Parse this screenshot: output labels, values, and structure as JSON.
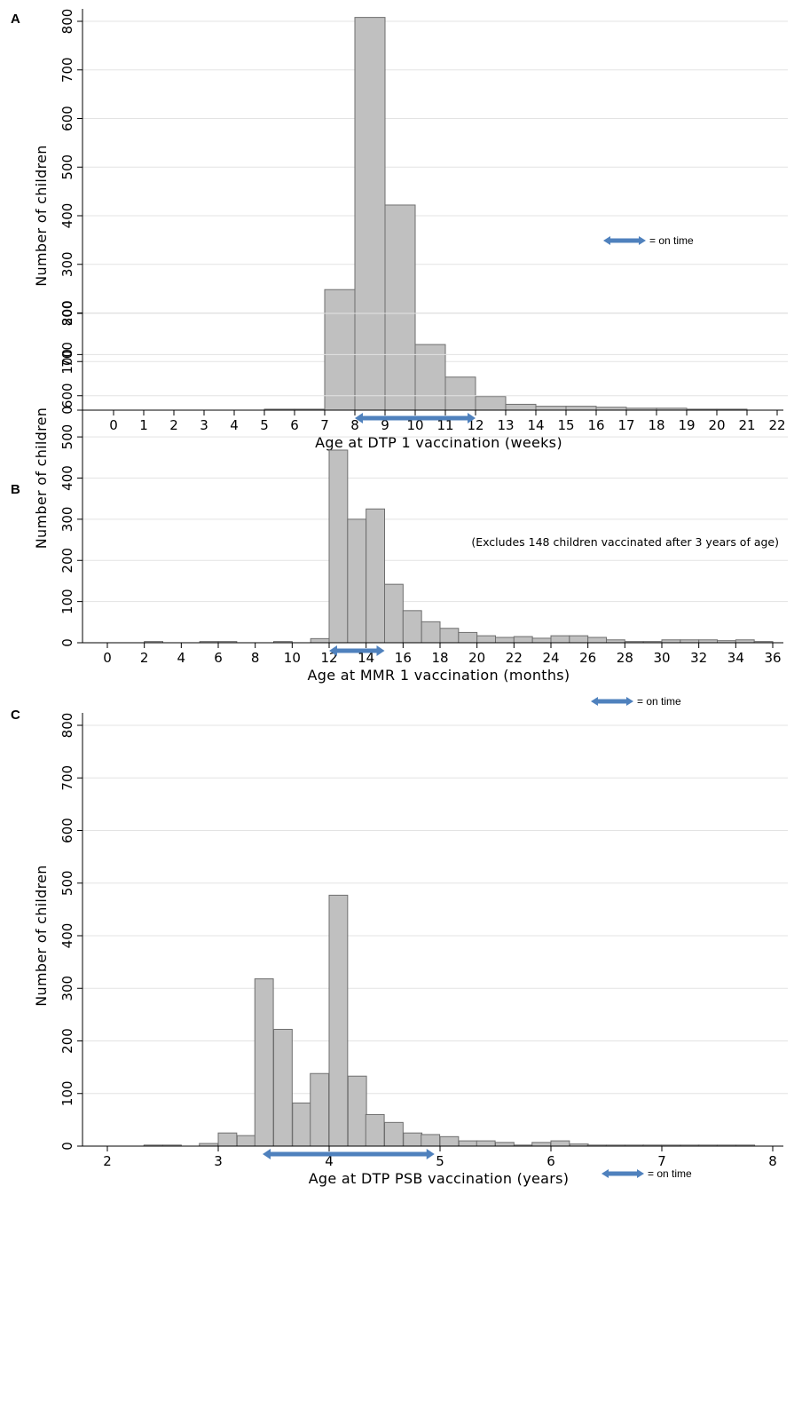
{
  "chart_data": [
    {
      "panel_label": "A",
      "type": "bar",
      "xlabel": "Age at DTP 1 vaccination (weeks)",
      "ylabel": "Number of children",
      "xlim": [
        -0.5,
        22.3
      ],
      "ylim": [
        0,
        800
      ],
      "xticks": [
        0,
        1,
        2,
        3,
        4,
        5,
        6,
        7,
        8,
        9,
        10,
        11,
        12,
        13,
        14,
        15,
        16,
        17,
        18,
        19,
        20,
        21,
        22
      ],
      "yticks": [
        0,
        100,
        200,
        300,
        400,
        500,
        600,
        700,
        800
      ],
      "bin_width": 1,
      "bins": [
        {
          "start": 5,
          "value": 2
        },
        {
          "start": 6,
          "value": 2
        },
        {
          "start": 7,
          "value": 248
        },
        {
          "start": 8,
          "value": 808
        },
        {
          "start": 9,
          "value": 422
        },
        {
          "start": 10,
          "value": 135
        },
        {
          "start": 11,
          "value": 68
        },
        {
          "start": 12,
          "value": 28
        },
        {
          "start": 13,
          "value": 12
        },
        {
          "start": 14,
          "value": 8
        },
        {
          "start": 15,
          "value": 8
        },
        {
          "start": 16,
          "value": 6
        },
        {
          "start": 17,
          "value": 4
        },
        {
          "start": 18,
          "value": 4
        },
        {
          "start": 19,
          "value": 2
        },
        {
          "start": 20,
          "value": 2
        }
      ],
      "on_time_range": [
        8,
        12
      ],
      "legend": {
        "label": "= on time",
        "position": "right-middle"
      },
      "note": "",
      "accent_color": "#4f81bd",
      "grid": true
    },
    {
      "panel_label": "B",
      "type": "bar",
      "xlabel": "Age at MMR 1 vaccination (months)",
      "ylabel": "Number of children",
      "xlim": [
        -1,
        36.2
      ],
      "ylim": [
        0,
        800
      ],
      "xticks": [
        0,
        2,
        4,
        6,
        8,
        10,
        12,
        14,
        16,
        18,
        20,
        22,
        24,
        26,
        28,
        30,
        32,
        34,
        36
      ],
      "yticks": [
        0,
        100,
        200,
        300,
        400,
        500,
        600,
        700,
        800
      ],
      "bin_width": 1,
      "bins": [
        {
          "start": 2,
          "value": 3
        },
        {
          "start": 5,
          "value": 3
        },
        {
          "start": 6,
          "value": 3
        },
        {
          "start": 9,
          "value": 3
        },
        {
          "start": 11,
          "value": 10
        },
        {
          "start": 12,
          "value": 468
        },
        {
          "start": 13,
          "value": 300
        },
        {
          "start": 14,
          "value": 325
        },
        {
          "start": 15,
          "value": 142
        },
        {
          "start": 16,
          "value": 78
        },
        {
          "start": 17,
          "value": 51
        },
        {
          "start": 18,
          "value": 35
        },
        {
          "start": 19,
          "value": 25
        },
        {
          "start": 20,
          "value": 17
        },
        {
          "start": 21,
          "value": 13
        },
        {
          "start": 22,
          "value": 15
        },
        {
          "start": 23,
          "value": 11
        },
        {
          "start": 24,
          "value": 17
        },
        {
          "start": 25,
          "value": 17
        },
        {
          "start": 26,
          "value": 13
        },
        {
          "start": 27,
          "value": 7
        },
        {
          "start": 28,
          "value": 3
        },
        {
          "start": 29,
          "value": 3
        },
        {
          "start": 30,
          "value": 7
        },
        {
          "start": 31,
          "value": 7
        },
        {
          "start": 32,
          "value": 7
        },
        {
          "start": 33,
          "value": 5
        },
        {
          "start": 34,
          "value": 7
        },
        {
          "start": 35,
          "value": 3
        }
      ],
      "on_time_range": [
        12,
        15
      ],
      "legend": {
        "label": "= on time",
        "position": "right-middle"
      },
      "note": "(Excludes 148 children vaccinated after 3 years of age)",
      "accent_color": "#4f81bd",
      "grid": true
    },
    {
      "panel_label": "C",
      "type": "bar",
      "xlabel": "Age at DTP  PSB vaccination (years)",
      "ylabel": "Number of children",
      "xlim": [
        1.95,
        8.05
      ],
      "ylim": [
        0,
        800
      ],
      "xticks": [
        2,
        3,
        4,
        5,
        6,
        7,
        8
      ],
      "yticks": [
        0,
        100,
        200,
        300,
        400,
        500,
        600,
        700,
        800
      ],
      "bin_width": 0.1667,
      "bins": [
        {
          "start": 2.33,
          "value": 2
        },
        {
          "start": 2.5,
          "value": 2
        },
        {
          "start": 2.83,
          "value": 5
        },
        {
          "start": 3.0,
          "value": 25
        },
        {
          "start": 3.17,
          "value": 20
        },
        {
          "start": 3.33,
          "value": 318
        },
        {
          "start": 3.5,
          "value": 222
        },
        {
          "start": 3.67,
          "value": 82
        },
        {
          "start": 3.83,
          "value": 138
        },
        {
          "start": 4.0,
          "value": 477
        },
        {
          "start": 4.17,
          "value": 133
        },
        {
          "start": 4.33,
          "value": 60
        },
        {
          "start": 4.5,
          "value": 45
        },
        {
          "start": 4.67,
          "value": 25
        },
        {
          "start": 4.83,
          "value": 22
        },
        {
          "start": 5.0,
          "value": 18
        },
        {
          "start": 5.17,
          "value": 10
        },
        {
          "start": 5.33,
          "value": 10
        },
        {
          "start": 5.5,
          "value": 7
        },
        {
          "start": 5.67,
          "value": 2
        },
        {
          "start": 5.83,
          "value": 7
        },
        {
          "start": 6.0,
          "value": 10
        },
        {
          "start": 6.17,
          "value": 4
        },
        {
          "start": 6.33,
          "value": 2
        },
        {
          "start": 6.5,
          "value": 2
        },
        {
          "start": 6.67,
          "value": 2
        },
        {
          "start": 6.83,
          "value": 2
        },
        {
          "start": 7.0,
          "value": 2
        },
        {
          "start": 7.17,
          "value": 2
        },
        {
          "start": 7.33,
          "value": 2
        },
        {
          "start": 7.5,
          "value": 2
        },
        {
          "start": 7.67,
          "value": 2
        }
      ],
      "on_time_range": [
        3.4,
        4.95
      ],
      "legend": {
        "label": "= on time",
        "position": "right-middle"
      },
      "note": "",
      "accent_color": "#4f81bd",
      "grid": true
    }
  ]
}
